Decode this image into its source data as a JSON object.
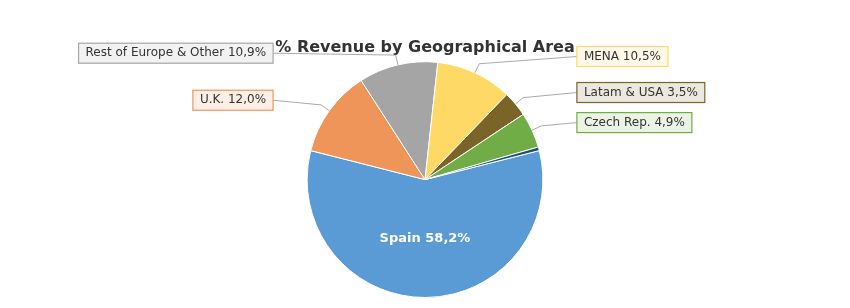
{
  "chart_data": {
    "type": "pie",
    "title": "% Revenue by Geographical Area",
    "categories": [
      "Spain 58,2%",
      "U.K. 12,0%",
      "Rest of Europe & Other 10,9%",
      "MENA 10,5%",
      "Latam & USA 3,5%",
      "Czech Rep. 4,9%",
      null
    ],
    "values": [
      58.2,
      12.0,
      10.9,
      10.5,
      3.5,
      4.9,
      0.5
    ],
    "colors": [
      "#5B9BD5",
      "#F0955A",
      "#A5A5A5",
      "#FFD966",
      "#7B6427",
      "#70AD47",
      "#1F4E79"
    ]
  }
}
